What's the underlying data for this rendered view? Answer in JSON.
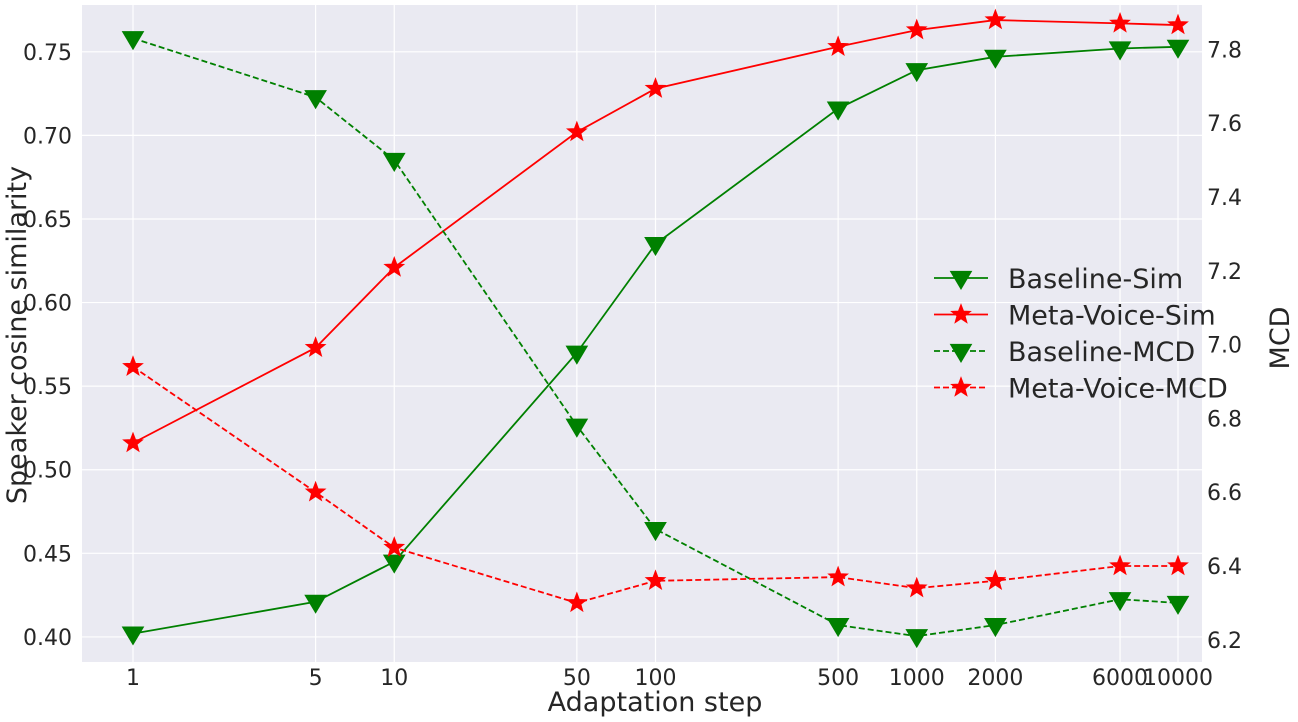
{
  "chart_data": {
    "type": "line",
    "xlabel": "Adaptation step",
    "ylabel_left": "Speaker cosine similarity",
    "ylabel_right": "MCD",
    "x_scale": "log",
    "x": [
      1,
      5,
      10,
      50,
      100,
      500,
      1000,
      2000,
      6000,
      10000
    ],
    "x_tick_labels": [
      "1",
      "5",
      "10",
      "50",
      "100",
      "500",
      "1000",
      "2000",
      "6000",
      "10000"
    ],
    "ylim_left": [
      0.385,
      0.778
    ],
    "yticks_left": [
      "0.40",
      "0.45",
      "0.50",
      "0.55",
      "0.60",
      "0.65",
      "0.70",
      "0.75"
    ],
    "ylim_right": [
      6.14,
      7.92
    ],
    "yticks_right": [
      "6.2",
      "6.4",
      "6.6",
      "6.8",
      "7.0",
      "7.2",
      "7.4",
      "7.6",
      "7.8"
    ],
    "grid": true,
    "legend_position": "center-right",
    "series": [
      {
        "name": "Baseline-Sim",
        "axis": "left",
        "color": "#008000",
        "linestyle": "solid",
        "marker": "triangle-down",
        "values": [
          0.402,
          0.421,
          0.445,
          0.57,
          0.635,
          0.716,
          0.739,
          0.747,
          0.752,
          0.753
        ]
      },
      {
        "name": "Meta-Voice-Sim",
        "axis": "left",
        "color": "#ff0000",
        "linestyle": "solid",
        "marker": "star",
        "values": [
          0.516,
          0.573,
          0.621,
          0.702,
          0.728,
          0.753,
          0.763,
          0.769,
          0.767,
          0.766
        ]
      },
      {
        "name": "Baseline-MCD",
        "axis": "right",
        "color": "#008000",
        "linestyle": "dashed",
        "marker": "triangle-down",
        "values": [
          7.83,
          7.67,
          7.5,
          6.78,
          6.5,
          6.24,
          6.21,
          6.24,
          6.31,
          6.3
        ]
      },
      {
        "name": "Meta-Voice-MCD",
        "axis": "right",
        "color": "#ff0000",
        "linestyle": "dashed",
        "marker": "star",
        "values": [
          6.94,
          6.6,
          6.45,
          6.3,
          6.36,
          6.37,
          6.34,
          6.36,
          6.4,
          6.4
        ]
      }
    ]
  }
}
